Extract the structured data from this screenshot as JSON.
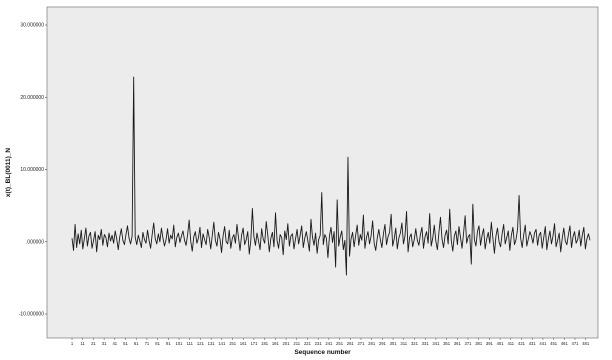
{
  "chart_data": {
    "type": "line",
    "xlabel": "Sequence number",
    "ylabel": "x(t)_BL(0011)_N",
    "ylim": [
      -10.0,
      30.0
    ],
    "yticks": [
      {
        "value": 30,
        "label": "30.000000"
      },
      {
        "value": 20,
        "label": "20.000000"
      },
      {
        "value": 10,
        "label": "10.000000"
      },
      {
        "value": 0,
        "label": ".000000"
      },
      {
        "value": -10,
        "label": "-10.000000"
      }
    ],
    "xlim": [
      1,
      485
    ],
    "xticks": [
      1,
      11,
      21,
      31,
      41,
      51,
      61,
      71,
      81,
      91,
      101,
      111,
      121,
      131,
      141,
      151,
      161,
      171,
      181,
      191,
      201,
      211,
      221,
      231,
      241,
      251,
      261,
      271,
      281,
      291,
      301,
      311,
      321,
      331,
      341,
      351,
      361,
      371,
      381,
      391,
      401,
      411,
      421,
      431,
      441,
      451,
      461,
      471,
      481
    ],
    "series": [
      {
        "values": [
          0.5,
          -1.2,
          2.4,
          -0.8,
          1.1,
          -0.3,
          1.6,
          -1.0,
          0.4,
          1.9,
          -0.6,
          0.8,
          1.3,
          -0.9,
          0.2,
          1.4,
          -1.4,
          0.9,
          0.3,
          1.7,
          -0.5,
          1.0,
          0.6,
          -0.7,
          1.2,
          0.1,
          0.9,
          -0.2,
          1.5,
          0.4,
          -1.1,
          0.7,
          1.8,
          0.2,
          -0.4,
          1.0,
          2.2,
          0.5,
          -0.3,
          0.8,
          22.8,
          0.6,
          -0.4,
          0.9,
          0.1,
          -0.8,
          1.3,
          0.3,
          -0.2,
          1.6,
          0.2,
          -0.9,
          1.0,
          2.6,
          0.4,
          -0.3,
          1.1,
          0.0,
          1.9,
          0.5,
          -0.6,
          0.3,
          1.8,
          -0.2,
          0.9,
          0.4,
          2.3,
          -0.7,
          0.6,
          1.2,
          -0.1,
          0.8,
          1.5,
          0.2,
          -0.5,
          1.0,
          3.0,
          0.1,
          -1.3,
          0.7,
          1.4,
          -0.2,
          0.5,
          2.0,
          -0.8,
          1.1,
          0.3,
          -0.4,
          1.7,
          0.6,
          -1.0,
          0.9,
          2.7,
          0.2,
          -0.6,
          1.3,
          0.4,
          -1.5,
          0.8,
          2.1,
          0.0,
          -0.3,
          1.6,
          -0.9,
          0.5,
          1.0,
          -0.2,
          2.4,
          0.6,
          -1.2,
          0.9,
          1.9,
          -0.4,
          0.3,
          1.4,
          -1.7,
          0.2,
          4.6,
          0.7,
          -0.5,
          1.2,
          0.1,
          -1.1,
          1.8,
          0.4,
          -0.2,
          2.8,
          0.9,
          -1.4,
          0.5,
          1.3,
          -0.7,
          4.0,
          0.2,
          -0.9,
          1.0,
          0.6,
          -1.8,
          1.5,
          0.3,
          2.5,
          -0.6,
          0.8,
          1.1,
          -1.0,
          0.4,
          1.7,
          -0.3,
          0.9,
          2.2,
          -0.8,
          0.5,
          1.4,
          0.1,
          -1.3,
          3.1,
          0.6,
          -0.5,
          1.2,
          -1.6,
          0.3,
          0.9,
          6.8,
          -0.4,
          1.0,
          0.5,
          -2.2,
          0.8,
          2.0,
          -0.1,
          1.4,
          -3.5,
          5.8,
          -0.6,
          0.7,
          1.5,
          -1.1,
          0.2,
          -4.6,
          11.7,
          -2.0,
          0.4,
          1.3,
          -0.7,
          0.9,
          2.3,
          -0.5,
          1.0,
          0.2,
          3.7,
          -0.9,
          0.6,
          1.4,
          -0.3,
          0.8,
          2.9,
          -0.2,
          -1.2,
          0.5,
          1.7,
          0.3,
          -0.8,
          1.1,
          2.4,
          -0.4,
          0.7,
          1.3,
          3.8,
          -0.6,
          0.4,
          1.9,
          -1.0,
          0.5,
          1.2,
          2.6,
          -0.3,
          0.8,
          4.2,
          -1.4,
          0.6,
          1.1,
          -0.7,
          0.3,
          1.8,
          0.2,
          -0.5,
          1.0,
          2.0,
          -0.9,
          0.7,
          1.4,
          -0.2,
          3.9,
          -0.6,
          0.5,
          2.3,
          0.1,
          -1.1,
          1.3,
          3.4,
          0.4,
          -0.8,
          0.9,
          1.6,
          -0.3,
          4.5,
          0.2,
          -1.3,
          0.8,
          1.5,
          -0.4,
          2.1,
          0.6,
          -0.9,
          1.2,
          3.6,
          -0.2,
          0.7,
          1.0,
          -3.1,
          5.2,
          0.3,
          -0.6,
          1.4,
          2.2,
          -0.5,
          0.9,
          1.8,
          -1.0,
          0.4,
          1.3,
          -0.2,
          2.7,
          0.5,
          -1.6,
          0.8,
          1.9,
          0.0,
          -0.7,
          1.1,
          2.4,
          -0.3,
          0.6,
          1.5,
          -1.2,
          0.9,
          2.0,
          -0.4,
          0.3,
          1.7,
          6.4,
          0.5,
          -0.8,
          1.0,
          2.3,
          -0.6,
          0.4,
          1.4,
          0.8,
          -0.2,
          1.2,
          1.7,
          -0.5,
          0.9,
          1.3,
          -0.9,
          0.6,
          2.1,
          -1.1,
          0.4,
          1.5,
          -0.3,
          0.8,
          2.5,
          -0.7,
          0.2,
          1.2,
          -1.4,
          0.5,
          1.9,
          0.1,
          -0.4,
          1.0,
          2.2,
          -0.8,
          0.7,
          1.4,
          -0.2,
          0.3,
          1.6,
          -0.6,
          0.9,
          2.0,
          -1.0,
          0.4,
          1.1,
          0.2
        ]
      }
    ]
  }
}
